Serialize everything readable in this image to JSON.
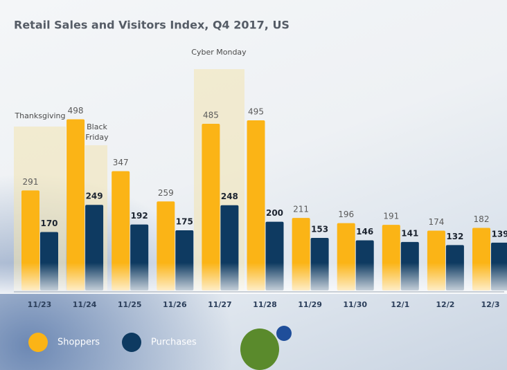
{
  "chart_data": {
    "type": "bar",
    "title": "Retail Sales and Visitors Index, Q4 2017, US",
    "categories": [
      "11/23",
      "11/24",
      "11/25",
      "11/26",
      "11/27",
      "11/28",
      "11/29",
      "11/30",
      "12/1",
      "12/2",
      "12/3"
    ],
    "series": [
      {
        "name": "Shoppers",
        "color": "#fbb416",
        "values": [
          291,
          498,
          347,
          259,
          485,
          495,
          211,
          196,
          191,
          174,
          182
        ]
      },
      {
        "name": "Purchases",
        "color": "#0e3a61",
        "values": [
          170,
          249,
          192,
          175,
          248,
          200,
          153,
          146,
          141,
          132,
          139
        ]
      }
    ],
    "annotations": [
      "Thanksgiving",
      "Black Friday",
      "Cyber Monday"
    ]
  }
}
